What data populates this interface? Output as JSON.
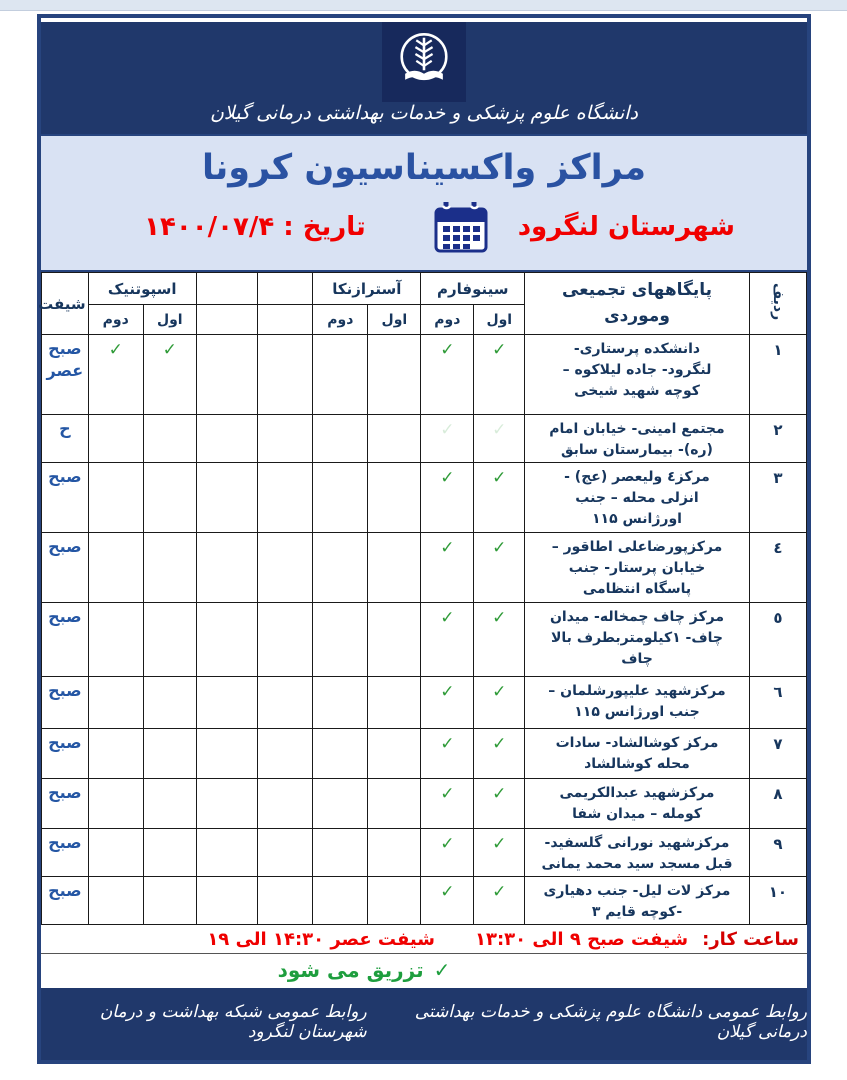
{
  "header": {
    "org_line": "دانشگاه علوم پزشکی و خدمات بهداشتی درمانی گیلان"
  },
  "title_block": {
    "title": "مراکز واکسیناسیون کرونا",
    "county": "شهرستان لنگرود",
    "date": "تاریخ : ۱۴۰۰/۰۷/۴"
  },
  "table": {
    "header": {
      "row_no": "ردیف",
      "centers": "پایگاههای تجمیعی\nوموردی",
      "vaccines": [
        {
          "name": "سینوفارم",
          "doses": [
            "اول",
            "دوم"
          ]
        },
        {
          "name": "آسترازنکا",
          "doses": [
            "اول",
            "دوم"
          ]
        },
        {
          "name": "اسپوتنیک",
          "doses": [
            "اول",
            "دوم"
          ]
        }
      ],
      "shift": "شیفت"
    },
    "rows": [
      {
        "no": "۱",
        "name": "دانشکده پرستاری-\nلنگرود- جاده لیلاکوه –\nکوچه شهید شیخی",
        "checks": [
          "✓",
          "✓",
          "",
          "",
          "",
          "",
          "✓",
          "✓"
        ],
        "shift": "صبح\nعصر"
      },
      {
        "no": "۲",
        "name": "مجتمع امینی- خیابان امام\n(ره)- بیمارستان سابق",
        "checks": [
          "faint",
          "faint",
          "",
          "",
          "",
          "",
          "",
          ""
        ],
        "shift": "ح"
      },
      {
        "no": "۳",
        "name": "مرکز٤ ولیعصر (عج) -\nانزلی محله – جنب\nاورژانس ۱۱۵",
        "checks": [
          "✓",
          "✓",
          "",
          "",
          "",
          "",
          "",
          ""
        ],
        "shift": "صبح"
      },
      {
        "no": "٤",
        "name": "مرکزپورضاعلی اطاقور –\nخیابان  پرستار- جنب\nپاسگاه انتظامی",
        "checks": [
          "✓",
          "✓",
          "",
          "",
          "",
          "",
          "",
          ""
        ],
        "shift": "صبح"
      },
      {
        "no": "٥",
        "name": "مرکز چاف چمخاله- میدان\nچاف- ۱کیلومتربطرف بالا\nچاف",
        "checks": [
          "✓",
          "✓",
          "",
          "",
          "",
          "",
          "",
          ""
        ],
        "shift": "صبح"
      },
      {
        "no": "٦",
        "name": "مرکزشهید علیپورشلمان –\nجنب اورژانس ۱۱۵",
        "checks": [
          "✓",
          "✓",
          "",
          "",
          "",
          "",
          "",
          ""
        ],
        "shift": "صبح"
      },
      {
        "no": "۷",
        "name": "مرکز کوشالشاد- سادات\nمحله کوشالشاد",
        "checks": [
          "✓",
          "✓",
          "",
          "",
          "",
          "",
          "",
          ""
        ],
        "shift": "صبح"
      },
      {
        "no": "۸",
        "name": "مرکزشهید عبدالکریمی\nکومله – میدان شفا",
        "checks": [
          "✓",
          "✓",
          "",
          "",
          "",
          "",
          "",
          ""
        ],
        "shift": "صبح"
      },
      {
        "no": "۹",
        "name": "مرکزشهید نورانی گلسفید-\nقبل مسجد سید محمد یمانی",
        "checks": [
          "✓",
          "✓",
          "",
          "",
          "",
          "",
          "",
          ""
        ],
        "shift": "صبح"
      },
      {
        "no": "۱۰",
        "name": "مرکز لات لیل- جنب دهیاری\n-کوچه قایم ۳",
        "checks": [
          "✓",
          "✓",
          "",
          "",
          "",
          "",
          "",
          ""
        ],
        "shift": "صبح"
      }
    ]
  },
  "footer": {
    "hours_label": "ساعت کار:",
    "hours_morning": "شیفت صبح ۹ الی ۱۳:۳۰",
    "hours_evening": "شیفت عصر ۱۴:۳۰ الی ۱۹",
    "note_check": "✓",
    "note_text": "تزریق می شود",
    "footer_left": "روابط عمومی دانشگاه علوم پزشکی و خدمات بهداشتی درمانی گیلان",
    "footer_right": "روابط عمومی شبکه بهداشت و درمان شهرستان لنگرود"
  },
  "colors": {
    "navy_band": "#20386b",
    "title_blue": "#2a52a2",
    "alert_red": "#f10000",
    "check_green": "#2f9b38",
    "panel_blue": "#d9e2f3"
  }
}
